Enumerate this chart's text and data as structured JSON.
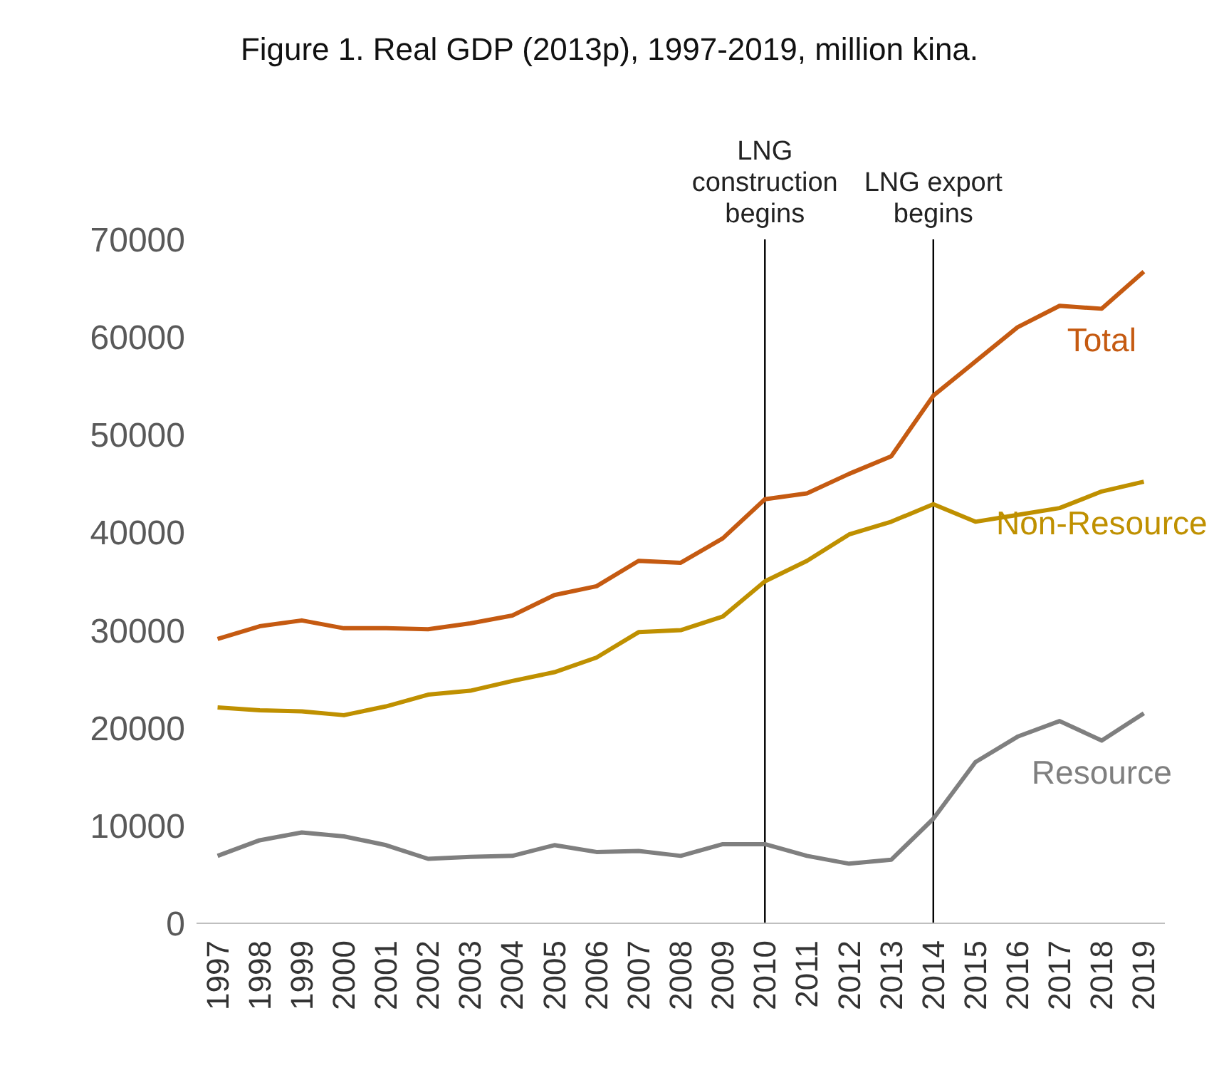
{
  "chart_data": {
    "type": "line",
    "title": "Figure 1. Real GDP (2013p), 1997-2019, million kina.",
    "categories": [
      "1997",
      "1998",
      "1999",
      "2000",
      "2001",
      "2002",
      "2003",
      "2004",
      "2005",
      "2006",
      "2007",
      "2008",
      "2009",
      "2010",
      "2011",
      "2012",
      "2013",
      "2014",
      "2015",
      "2016",
      "2017",
      "2018",
      "2019"
    ],
    "series": [
      {
        "name": "Total",
        "color": "#c55a11",
        "values": [
          29100,
          30400,
          31000,
          30200,
          30200,
          30100,
          30700,
          31500,
          33600,
          34500,
          37100,
          36900,
          39400,
          43400,
          44000,
          46000,
          47800,
          54000,
          57500,
          61000,
          63200,
          62900,
          66700
        ]
      },
      {
        "name": "Non-Resource",
        "color": "#bf9000",
        "values": [
          22100,
          21800,
          21700,
          21300,
          22200,
          23400,
          23800,
          24800,
          25700,
          27200,
          29800,
          30000,
          31400,
          35000,
          37100,
          39800,
          41100,
          42900,
          41100,
          41800,
          42500,
          44200,
          45200
        ]
      },
      {
        "name": "Resource",
        "color": "#7f7f7f",
        "values": [
          6900,
          8500,
          9300,
          8900,
          8000,
          6600,
          6800,
          6900,
          8000,
          7300,
          7400,
          6900,
          8100,
          8100,
          6900,
          6100,
          6500,
          10700,
          16500,
          19100,
          20700,
          18700,
          21500
        ]
      }
    ],
    "ylim": [
      0,
      70000
    ],
    "yticks": [
      0,
      10000,
      20000,
      30000,
      40000,
      50000,
      60000,
      70000
    ],
    "grid": false,
    "legend": false,
    "marker": "none",
    "line_style": "solid",
    "ref_lines": [
      {
        "axis": "x",
        "value": "2010",
        "label": "LNG construction begins",
        "color": "#000000"
      },
      {
        "axis": "x",
        "value": "2014",
        "label": "LNG export begins",
        "color": "#000000"
      }
    ]
  }
}
